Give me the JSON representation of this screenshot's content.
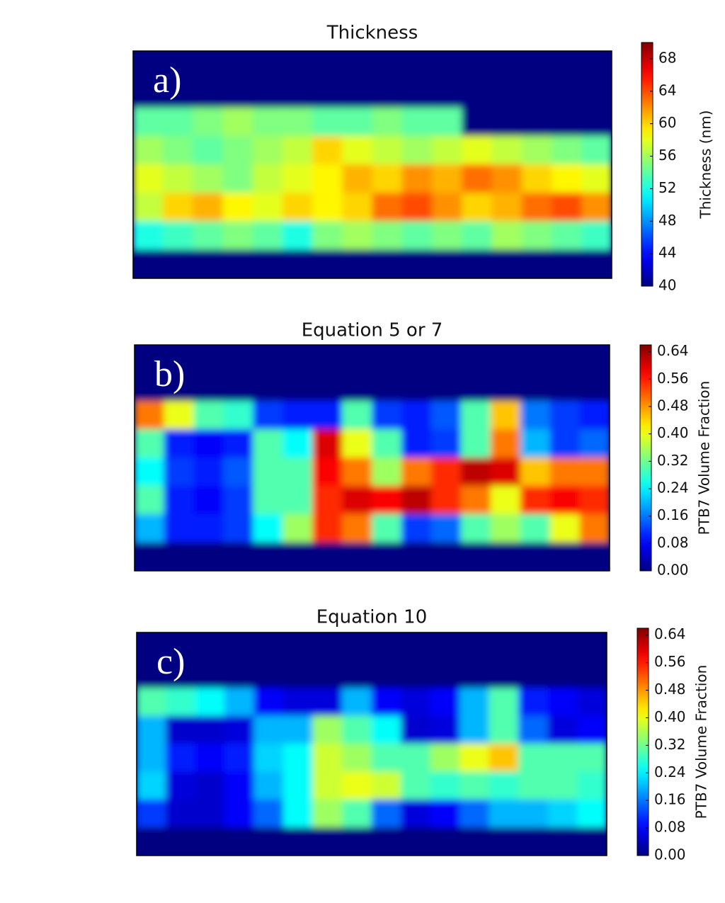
{
  "chart_data": [
    {
      "type": "heatmap",
      "title": "Thickness",
      "panel_label": "a)",
      "colorbar_label": "Thickness (nm)",
      "zlim": [
        40,
        70
      ],
      "zticks": [
        40,
        44,
        48,
        52,
        56,
        60,
        64,
        68
      ],
      "values": [
        [
          40,
          40,
          40,
          40,
          40,
          40,
          40,
          40,
          40,
          40,
          40,
          40,
          40,
          40,
          40,
          40
        ],
        [
          40,
          40,
          40,
          40,
          40,
          40,
          40,
          40,
          40,
          40,
          40,
          40,
          40,
          40,
          40,
          40
        ],
        [
          54,
          54,
          55,
          56,
          55,
          55,
          54,
          54,
          55,
          54,
          54,
          40,
          40,
          40,
          40,
          40
        ],
        [
          56,
          55,
          54,
          55,
          56,
          57,
          60,
          58,
          57,
          56,
          57,
          58,
          57,
          56,
          55,
          54
        ],
        [
          58,
          57,
          56,
          55,
          57,
          58,
          59,
          61,
          60,
          62,
          61,
          63,
          62,
          60,
          59,
          58
        ],
        [
          57,
          60,
          61,
          59,
          58,
          60,
          59,
          60,
          63,
          64,
          62,
          60,
          61,
          63,
          64,
          62
        ],
        [
          52,
          53,
          54,
          55,
          54,
          52,
          55,
          56,
          55,
          54,
          55,
          54,
          56,
          55,
          54,
          53
        ],
        [
          40,
          40,
          40,
          40,
          40,
          40,
          40,
          40,
          40,
          40,
          40,
          40,
          40,
          40,
          40,
          40
        ]
      ]
    },
    {
      "type": "heatmap",
      "title": "Equation 5 or 7",
      "panel_label": "b)",
      "colorbar_label": "PTB7 Volume Fraction",
      "zlim": [
        0,
        0.66
      ],
      "zticks": [
        {
          "value": 0,
          "label": "0.00"
        },
        {
          "value": 0.08,
          "label": "0.08"
        },
        {
          "value": 0.16,
          "label": "0.16"
        },
        {
          "value": 0.24,
          "label": "0.24"
        },
        {
          "value": 0.32,
          "label": "0.32"
        },
        {
          "value": 0.4,
          "label": "0.40"
        },
        {
          "value": 0.48,
          "label": "0.48"
        },
        {
          "value": 0.56,
          "label": "0.56"
        },
        {
          "value": 0.64,
          "label": "0.64"
        }
      ],
      "values": [
        [
          0,
          0,
          0,
          0,
          0,
          0,
          0,
          0,
          0,
          0,
          0,
          0,
          0,
          0,
          0,
          0
        ],
        [
          0,
          0,
          0,
          0,
          0,
          0,
          0,
          0,
          0,
          0,
          0,
          0,
          0,
          0,
          0,
          0
        ],
        [
          0.5,
          0.4,
          0.3,
          0.28,
          0.12,
          0.1,
          0.1,
          0.3,
          0.12,
          0.1,
          0.14,
          0.3,
          0.45,
          0.16,
          0.12,
          0.1
        ],
        [
          0.3,
          0.1,
          0.08,
          0.1,
          0.3,
          0.25,
          0.6,
          0.4,
          0.3,
          0.1,
          0.12,
          0.3,
          0.5,
          0.2,
          0.12,
          0.15
        ],
        [
          0.25,
          0.12,
          0.1,
          0.14,
          0.3,
          0.3,
          0.58,
          0.5,
          0.35,
          0.5,
          0.55,
          0.62,
          0.6,
          0.45,
          0.5,
          0.5
        ],
        [
          0.3,
          0.1,
          0.08,
          0.12,
          0.3,
          0.3,
          0.55,
          0.6,
          0.58,
          0.62,
          0.55,
          0.5,
          0.4,
          0.55,
          0.58,
          0.55
        ],
        [
          0.2,
          0.1,
          0.1,
          0.12,
          0.25,
          0.35,
          0.55,
          0.5,
          0.3,
          0.12,
          0.15,
          0.3,
          0.35,
          0.3,
          0.4,
          0.5
        ],
        [
          0,
          0,
          0,
          0,
          0,
          0,
          0,
          0,
          0,
          0,
          0,
          0,
          0,
          0,
          0,
          0
        ]
      ]
    },
    {
      "type": "heatmap",
      "title": "Equation 10",
      "panel_label": "c)",
      "colorbar_label": "PTB7 Volume Fraction",
      "zlim": [
        0,
        0.66
      ],
      "zticks": [
        {
          "value": 0,
          "label": "0.00"
        },
        {
          "value": 0.08,
          "label": "0.08"
        },
        {
          "value": 0.16,
          "label": "0.16"
        },
        {
          "value": 0.24,
          "label": "0.24"
        },
        {
          "value": 0.32,
          "label": "0.32"
        },
        {
          "value": 0.4,
          "label": "0.40"
        },
        {
          "value": 0.48,
          "label": "0.48"
        },
        {
          "value": 0.56,
          "label": "0.56"
        },
        {
          "value": 0.64,
          "label": "0.64"
        }
      ],
      "values": [
        [
          0,
          0,
          0,
          0,
          0,
          0,
          0,
          0,
          0,
          0,
          0,
          0,
          0,
          0,
          0,
          0
        ],
        [
          0,
          0,
          0,
          0,
          0,
          0,
          0,
          0,
          0,
          0,
          0,
          0,
          0,
          0,
          0,
          0
        ],
        [
          0.3,
          0.28,
          0.25,
          0.2,
          0.08,
          0.06,
          0.06,
          0.2,
          0.08,
          0.06,
          0.08,
          0.2,
          0.3,
          0.1,
          0.08,
          0.06
        ],
        [
          0.2,
          0.05,
          0.05,
          0.06,
          0.2,
          0.2,
          0.35,
          0.3,
          0.25,
          0.05,
          0.06,
          0.2,
          0.3,
          0.15,
          0.06,
          0.08
        ],
        [
          0.2,
          0.1,
          0.08,
          0.1,
          0.22,
          0.25,
          0.38,
          0.35,
          0.3,
          0.3,
          0.35,
          0.4,
          0.45,
          0.3,
          0.3,
          0.3
        ],
        [
          0.22,
          0.06,
          0.05,
          0.08,
          0.2,
          0.25,
          0.38,
          0.4,
          0.38,
          0.3,
          0.28,
          0.3,
          0.28,
          0.3,
          0.3,
          0.28
        ],
        [
          0.12,
          0.05,
          0.05,
          0.08,
          0.15,
          0.25,
          0.35,
          0.3,
          0.15,
          0.06,
          0.08,
          0.15,
          0.2,
          0.2,
          0.22,
          0.25
        ],
        [
          0,
          0,
          0,
          0,
          0,
          0,
          0,
          0,
          0,
          0,
          0,
          0,
          0,
          0,
          0,
          0
        ]
      ]
    }
  ]
}
